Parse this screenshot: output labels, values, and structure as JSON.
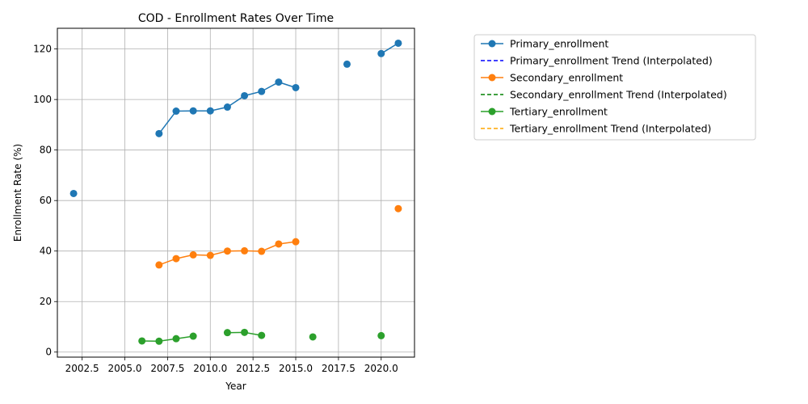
{
  "chart_data": {
    "type": "line",
    "title": "COD - Enrollment Rates Over Time",
    "xlabel": "Year",
    "ylabel": "Enrollment Rate (%)",
    "xlim": [
      2001.05,
      2021.95
    ],
    "ylim": [
      -2,
      128.2
    ],
    "x_ticks": [
      2002.5,
      2005.0,
      2007.5,
      2010.0,
      2012.5,
      2015.0,
      2017.5,
      2020.0
    ],
    "x_tick_labels": [
      "2002.5",
      "2005.0",
      "2007.5",
      "2010.0",
      "2012.5",
      "2015.0",
      "2017.5",
      "2020.0"
    ],
    "y_ticks": [
      0,
      20,
      40,
      60,
      80,
      100,
      120
    ],
    "y_tick_labels": [
      "0",
      "20",
      "40",
      "60",
      "80",
      "100",
      "120"
    ],
    "grid": true,
    "legend_position": "outside-right-top",
    "series": [
      {
        "name": "Primary_enrollment",
        "color": "#1f77b4",
        "style": "solid",
        "marker": "circle",
        "points": [
          [
            2002,
            62.8
          ],
          [
            2007,
            86.5
          ],
          [
            2008,
            95.4
          ],
          [
            2009,
            95.5
          ],
          [
            2010,
            95.5
          ],
          [
            2011,
            97.0
          ],
          [
            2012,
            101.5
          ],
          [
            2013,
            103.2
          ],
          [
            2014,
            106.9
          ],
          [
            2015,
            104.7
          ],
          [
            2018,
            114.0
          ],
          [
            2020,
            118.2
          ],
          [
            2021,
            122.3
          ]
        ]
      },
      {
        "name": "Primary_enrollment Trend (Interpolated)",
        "color": "#0000ff",
        "style": "dashed",
        "marker": "none",
        "points": []
      },
      {
        "name": "Secondary_enrollment",
        "color": "#ff7f0e",
        "style": "solid",
        "marker": "circle",
        "points": [
          [
            2007,
            34.5
          ],
          [
            2008,
            37.0
          ],
          [
            2009,
            38.5
          ],
          [
            2010,
            38.3
          ],
          [
            2011,
            40.0
          ],
          [
            2012,
            40.1
          ],
          [
            2013,
            39.9
          ],
          [
            2014,
            42.8
          ],
          [
            2015,
            43.7
          ],
          [
            2021,
            56.8
          ]
        ]
      },
      {
        "name": "Secondary_enrollment Trend (Interpolated)",
        "color": "#008000",
        "style": "dashed",
        "marker": "none",
        "points": []
      },
      {
        "name": "Tertiary_enrollment",
        "color": "#2ca02c",
        "style": "solid",
        "marker": "circle",
        "points": [
          [
            2006,
            4.4
          ],
          [
            2007,
            4.3
          ],
          [
            2008,
            5.3
          ],
          [
            2009,
            6.3
          ],
          [
            2011,
            7.7
          ],
          [
            2012,
            7.8
          ],
          [
            2013,
            6.6
          ],
          [
            2016,
            6.0
          ],
          [
            2020,
            6.5
          ]
        ]
      },
      {
        "name": "Tertiary_enrollment Trend (Interpolated)",
        "color": "#ffa500",
        "style": "dashed",
        "marker": "none",
        "points": []
      }
    ]
  }
}
